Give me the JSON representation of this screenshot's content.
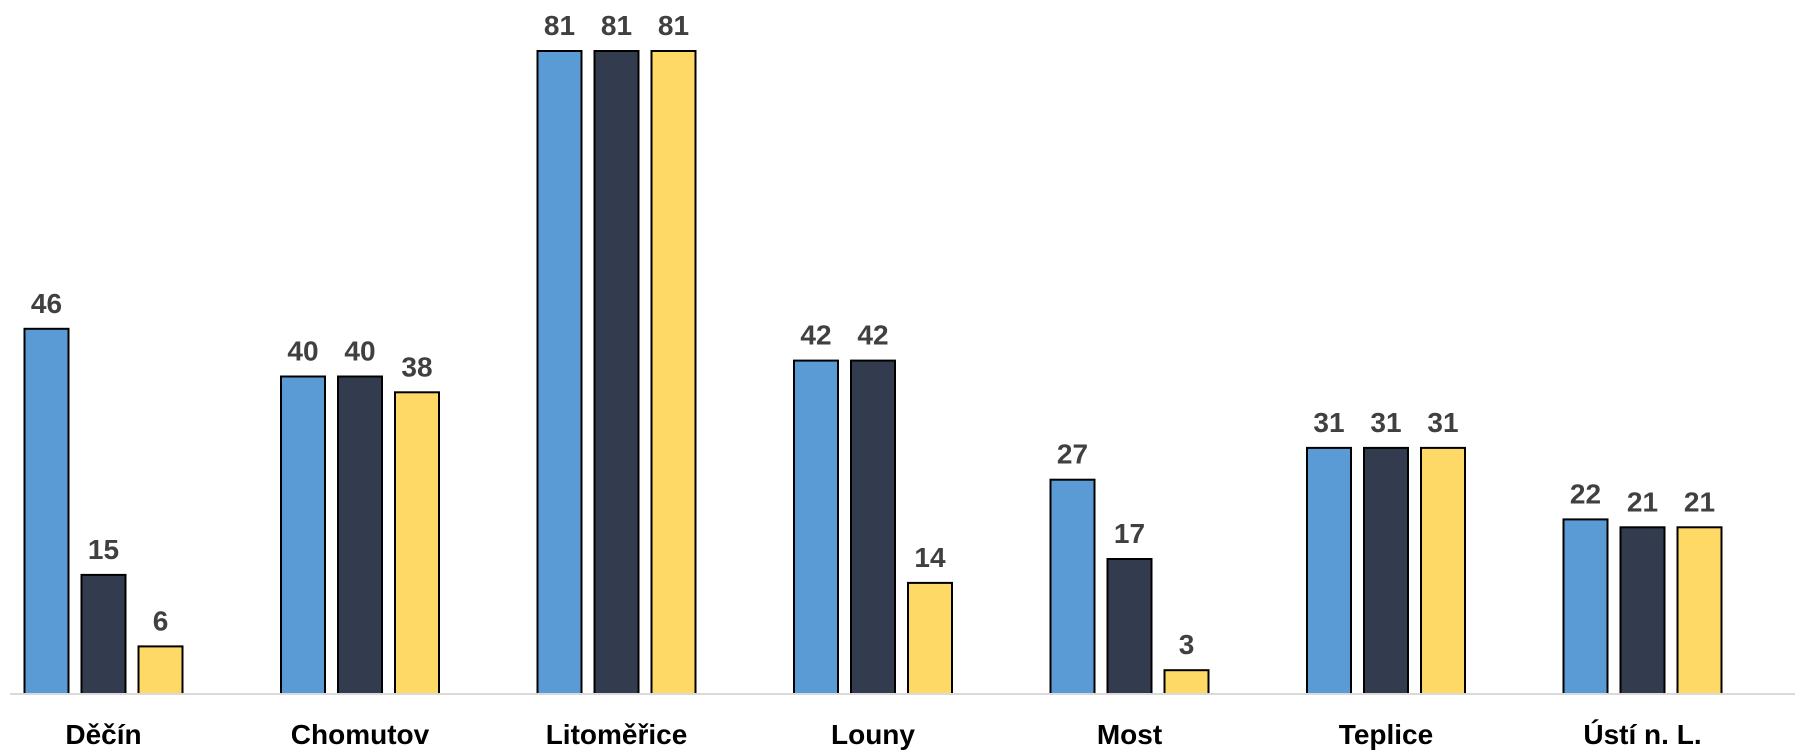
{
  "chart_data": {
    "type": "bar",
    "title": "",
    "xlabel": "",
    "ylabel": "",
    "ylim": [
      0,
      81
    ],
    "grid": false,
    "legend": "none",
    "categories": [
      "Děčín",
      "Chomutov",
      "Litoměřice",
      "Louny",
      "Most",
      "Teplice",
      "Ústí n. L."
    ],
    "series": [
      {
        "color": "#5b9bd5",
        "values": [
          46,
          40,
          81,
          42,
          27,
          31,
          22
        ]
      },
      {
        "color": "#323c4e",
        "values": [
          15,
          40,
          81,
          42,
          17,
          31,
          21
        ]
      },
      {
        "color": "#ffd966",
        "values": [
          6,
          38,
          81,
          14,
          3,
          31,
          21
        ]
      }
    ],
    "data_labels": true
  }
}
